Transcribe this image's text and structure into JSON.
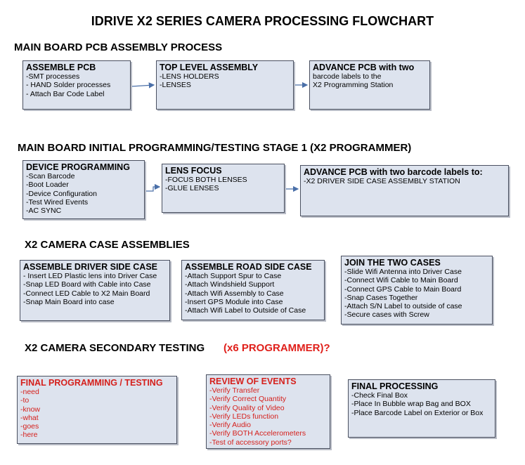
{
  "title": "IDRIVE X2  SERIES CAMERA PROCESSING FLOWCHART",
  "sections": [
    {
      "heading": "MAIN BOARD PCB ASSEMBLY PROCESS",
      "boxes": [
        {
          "title": "ASSEMBLE PCB",
          "lines": [
            "-SMT processes",
            "- HAND Solder processes",
            "- Attach Bar Code Label"
          ]
        },
        {
          "title": "TOP LEVEL ASSEMBLY",
          "lines": [
            "-LENS HOLDERS",
            "-LENSES"
          ]
        },
        {
          "title": "ADVANCE PCB with two",
          "lines": [
            "barcode labels to the",
            " X2 Programming Station"
          ]
        }
      ]
    },
    {
      "heading": "MAIN BOARD INITIAL PROGRAMMING/TESTING STAGE 1 (X2 PROGRAMMER)",
      "boxes": [
        {
          "title": "DEVICE PROGRAMMING",
          "lines": [
            "-Scan Barcode",
            "-Boot Loader",
            "-Device Configuration",
            "-Test Wired Events",
            "-AC SYNC"
          ]
        },
        {
          "title": "LENS FOCUS",
          "lines": [
            "-FOCUS BOTH LENSES",
            "-GLUE LENSES"
          ]
        },
        {
          "title": "ADVANCE PCB with two barcode labels to:",
          "lines": [
            "-X2 DRIVER  SIDE  CASE  ASSEMBLY STATION"
          ]
        }
      ]
    },
    {
      "heading": "X2 CAMERA CASE ASSEMBLIES",
      "boxes": [
        {
          "title": "ASSEMBLE DRIVER SIDE CASE",
          "lines": [
            " - Insert LED Plastic lens into Driver Case",
            "-Snap LED Board with Cable into Case",
            "-Connect LED Cable to X2 Main Board",
            "-Snap Main Board into case"
          ]
        },
        {
          "title": "ASSEMBLE ROAD SIDE CASE",
          "lines": [
            "-Attach Support Spur to Case",
            "-Attach Windshield Support",
            "-Attach Wifi Assembly to Case",
            "-Insert GPS Module into Case",
            "-Attach Wifi Label to Outside of Case"
          ]
        },
        {
          "title": "JOIN THE TWO CASES",
          "lines": [
            "-Slide Wifi Antenna into Driver Case",
            "-Connect Wifi Cable to Main Board",
            "-Connect GPS Cable to Main Board",
            "-Snap Cases Together",
            "-Attach S/N Label to outside of case",
            "-Secure cases with Screw"
          ]
        }
      ]
    },
    {
      "heading": "X2 CAMERA SECONDARY TESTING",
      "heading_extra": "(x6 PROGRAMMER)?",
      "boxes": [
        {
          "title": "FINAL PROGRAMMING / TESTING",
          "lines": [
            "-need",
            "-to",
            "-know",
            "-what",
            "-goes",
            "-here"
          ]
        },
        {
          "title": "REVIEW OF EVENTS",
          "lines": [
            "-Verify Transfer",
            "-Verify Correct Quantity",
            "-Verify Quality of Video",
            "-Verify LEDs function",
            "-Verify Audio",
            "-Verify BOTH Accelerometers",
            "-Test of accessory ports?"
          ]
        },
        {
          "title": "FINAL PROCESSING",
          "lines": [
            " -Check Final Box",
            "-Place In Bubble wrap Bag and BOX",
            "-Place Barcode Label on Exterior or Box"
          ]
        }
      ]
    }
  ]
}
